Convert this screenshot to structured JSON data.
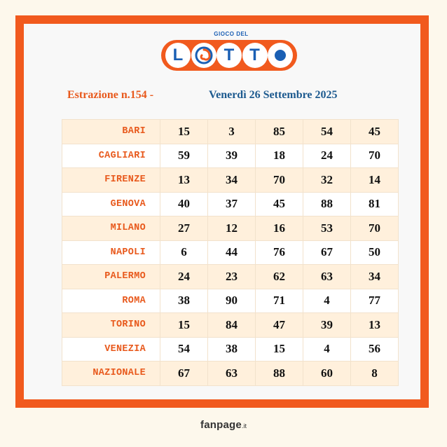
{
  "logo": {
    "top_text": "GIOCO DEL",
    "letters": [
      "L",
      "swirl",
      "T",
      "T",
      "dot"
    ],
    "word": "LOTTO"
  },
  "draw": {
    "number": "Estrazione n.154 -",
    "date": "Venerdì 26 Settembre 2025"
  },
  "results": [
    {
      "wheel": "BARI",
      "numbers": [
        "15",
        "3",
        "85",
        "54",
        "45"
      ]
    },
    {
      "wheel": "CAGLIARI",
      "numbers": [
        "59",
        "39",
        "18",
        "24",
        "70"
      ]
    },
    {
      "wheel": "FIRENZE",
      "numbers": [
        "13",
        "34",
        "70",
        "32",
        "14"
      ]
    },
    {
      "wheel": "GENOVA",
      "numbers": [
        "40",
        "37",
        "45",
        "88",
        "81"
      ]
    },
    {
      "wheel": "MILANO",
      "numbers": [
        "27",
        "12",
        "16",
        "53",
        "70"
      ]
    },
    {
      "wheel": "NAPOLI",
      "numbers": [
        "6",
        "44",
        "76",
        "67",
        "50"
      ]
    },
    {
      "wheel": "PALERMO",
      "numbers": [
        "24",
        "23",
        "62",
        "63",
        "34"
      ]
    },
    {
      "wheel": "ROMA",
      "numbers": [
        "38",
        "90",
        "71",
        "4",
        "77"
      ]
    },
    {
      "wheel": "TORINO",
      "numbers": [
        "15",
        "84",
        "47",
        "39",
        "13"
      ]
    },
    {
      "wheel": "VENEZIA",
      "numbers": [
        "54",
        "38",
        "15",
        "4",
        "56"
      ]
    },
    {
      "wheel": "NAZIONALE",
      "numbers": [
        "67",
        "63",
        "88",
        "60",
        "8"
      ]
    }
  ],
  "footer": {
    "brand": "fanpage",
    "tld": ".it"
  },
  "colors": {
    "frame": "#f15a1e",
    "wheel_text": "#e8591c",
    "date_text": "#1d5a8f",
    "logo_blue": "#1a5fb4",
    "row_odd": "#fff0dc",
    "row_even": "#ffffff"
  }
}
